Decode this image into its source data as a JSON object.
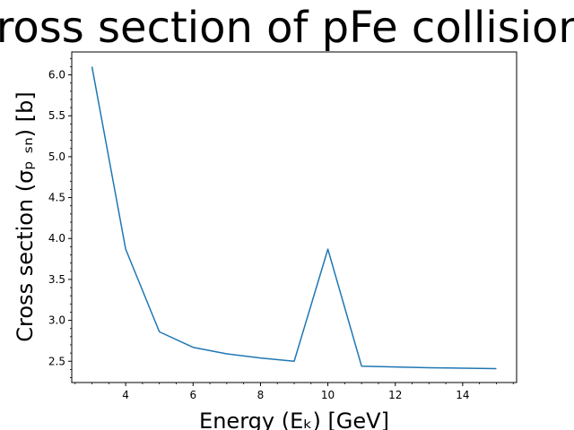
{
  "chart_data": {
    "type": "line",
    "title": "Cross section of pFe collisions",
    "xlabel": "Energy (Eₖ) [GeV]",
    "ylabel": "Cross section (σₚ ₛₙ) [b]",
    "xlim": [
      2.4,
      15.6
    ],
    "ylim": [
      2.24,
      6.28
    ],
    "x_ticks": [
      4,
      6,
      8,
      10,
      12,
      14
    ],
    "x_tick_labels": [
      "4",
      "6",
      "8",
      "10",
      "12",
      "14"
    ],
    "y_ticks": [
      2.5,
      3.0,
      3.5,
      4.0,
      4.5,
      5.0,
      5.5,
      6.0
    ],
    "y_tick_labels": [
      "2.5",
      "3.0",
      "3.5",
      "4.0",
      "4.5",
      "5.0",
      "5.5",
      "6.0"
    ],
    "minor_ticks": true,
    "grid": false,
    "line_color": "#1f77b4",
    "series": [
      {
        "x": [
          3,
          4,
          5,
          6,
          7,
          8,
          9,
          10,
          11,
          12,
          13,
          14,
          15
        ],
        "y": [
          6.1,
          3.87,
          2.86,
          2.67,
          2.59,
          2.54,
          2.5,
          3.87,
          2.44,
          2.43,
          2.42,
          2.415,
          2.41
        ]
      }
    ]
  }
}
